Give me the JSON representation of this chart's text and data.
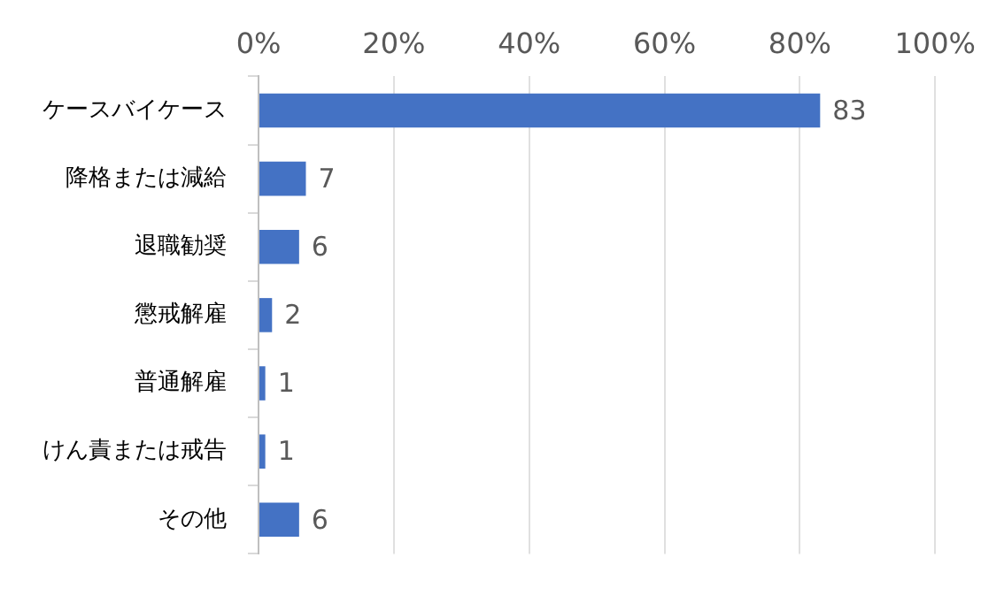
{
  "chart_data": {
    "type": "bar",
    "orientation": "horizontal",
    "categories": [
      "ケースバイケース",
      "降格または減給",
      "退職勧奨",
      "懲戒解雇",
      "普通解雇",
      "けん責または戒告",
      "その他"
    ],
    "values": [
      83,
      7,
      6,
      2,
      1,
      1,
      6
    ],
    "color": "#4472c4",
    "xlim": [
      0,
      100
    ],
    "xticks": [
      {
        "value": 0,
        "label": "0%"
      },
      {
        "value": 20,
        "label": "20%"
      },
      {
        "value": 40,
        "label": "40%"
      },
      {
        "value": 60,
        "label": "60%"
      },
      {
        "value": 80,
        "label": "80%"
      },
      {
        "value": 100,
        "label": "100%"
      }
    ],
    "grid": "x",
    "data_labels": true,
    "legend": false
  }
}
